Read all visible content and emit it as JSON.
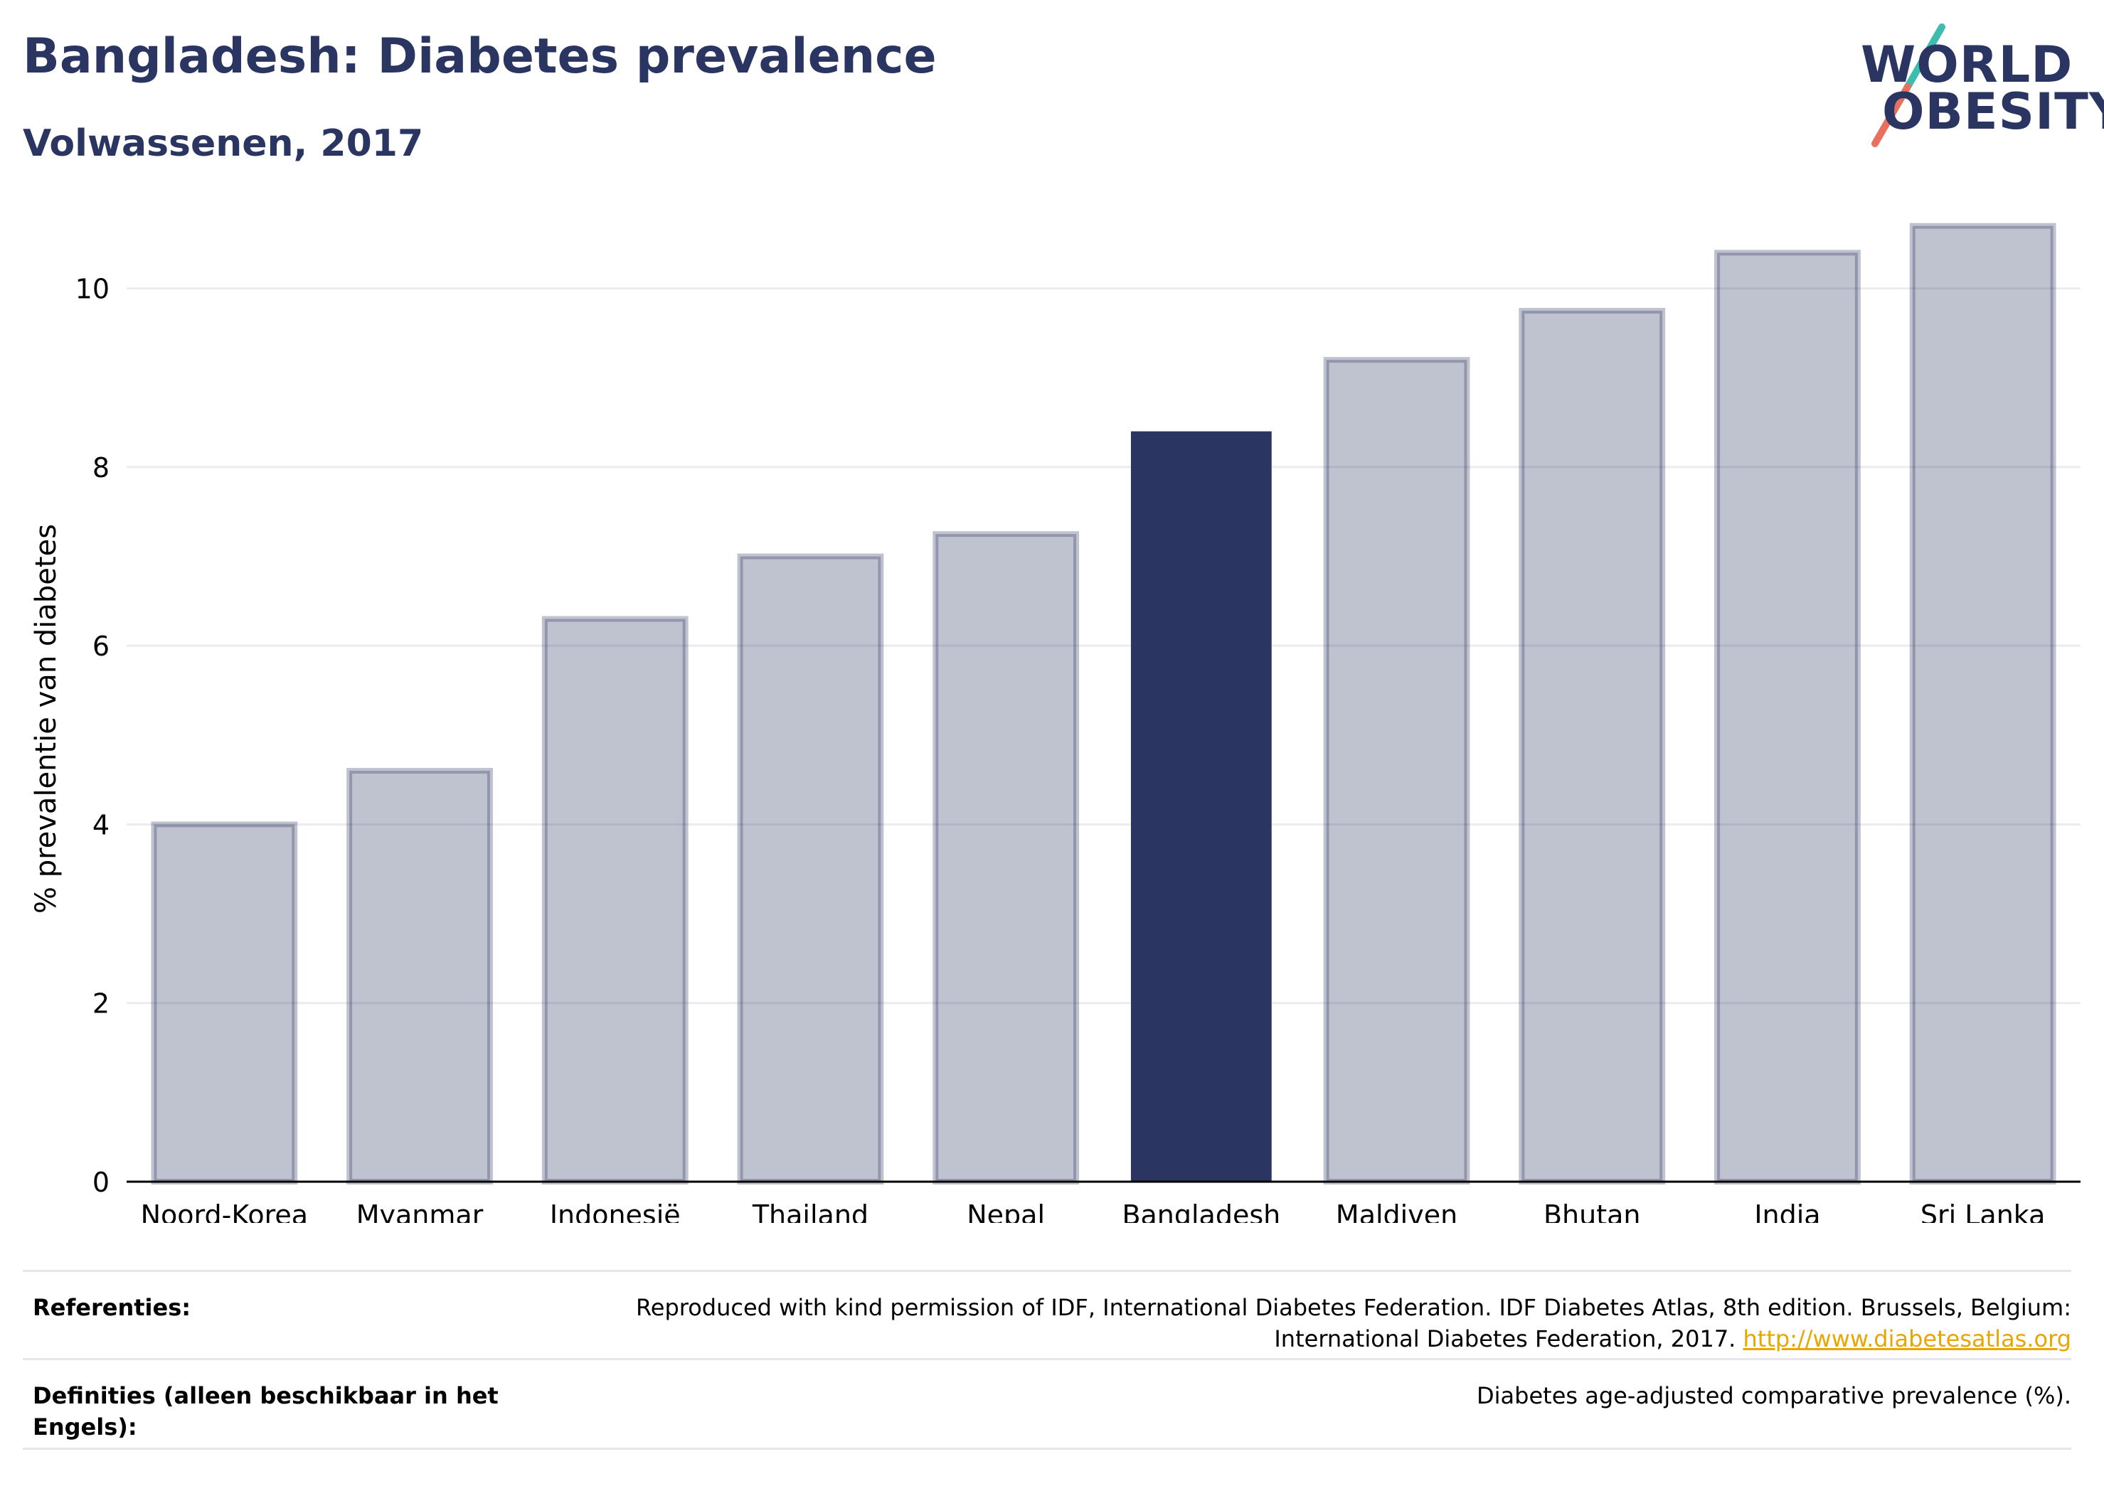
{
  "header": {
    "title": "Bangladesh: Diabetes prevalence",
    "subtitle": "Volwassenen, 2017"
  },
  "logo": {
    "line1": "WORLD",
    "line2": "OBESITY",
    "colors": {
      "text": "#2a3561",
      "slash_top": "#3fbcb0",
      "slash_bottom": "#e8705f"
    }
  },
  "chart_data": {
    "type": "bar",
    "categories": [
      "Noord-Korea",
      "Myanmar",
      "Indonesië",
      "Thailand",
      "Nepal",
      "Bangladesh",
      "Maldiven",
      "Bhutan",
      "India",
      "Sri Lanka"
    ],
    "values": [
      4.0,
      4.6,
      6.3,
      7.0,
      7.25,
      8.4,
      9.2,
      9.75,
      10.4,
      10.7
    ],
    "highlight": "Bangladesh",
    "title": "",
    "xlabel": "",
    "ylabel": "% prevalentie van diabetes",
    "ylim": [
      0,
      11
    ],
    "yticks": [
      0,
      2,
      4,
      6,
      8,
      10
    ],
    "grid": true,
    "colors": {
      "bar": "#2a3561",
      "highlight": "#2a3561"
    }
  },
  "footer": {
    "references_label": "Referenties:",
    "references_text": "Reproduced with kind permission of IDF, International Diabetes Federation. IDF Diabetes Atlas, 8th edition. Brussels, Belgium: International Diabetes Federation, 2017.",
    "references_link": "http://www.diabetesatlas.org",
    "definitions_label": "Definities (alleen beschikbaar in het Engels):",
    "definitions_text": "Diabetes age-adjusted comparative prevalence (%)."
  }
}
